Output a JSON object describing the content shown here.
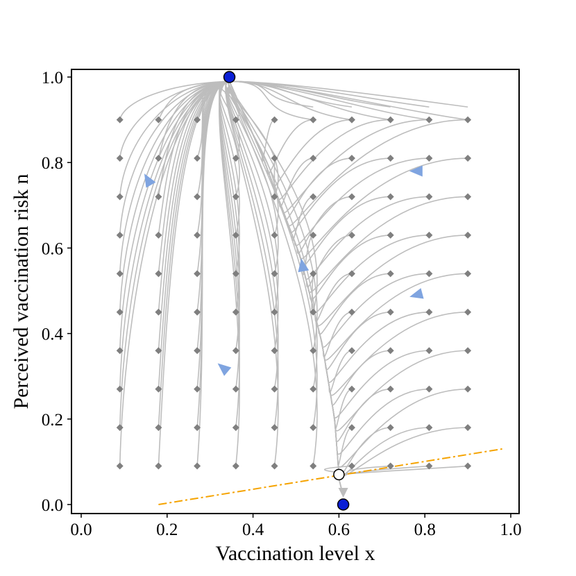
{
  "chart_data": {
    "type": "streamplot",
    "xlabel": "Vaccination level x",
    "ylabel": "Perceived vaccination risk n",
    "xlim": [
      0.0,
      1.0
    ],
    "ylim": [
      0.0,
      1.0
    ],
    "xticks": [
      "0.0",
      "0.2",
      "0.4",
      "0.6",
      "0.8",
      "1.0"
    ],
    "yticks": [
      "0.0",
      "0.2",
      "0.4",
      "0.6",
      "0.8",
      "1.0"
    ],
    "grid": false,
    "colors": {
      "trajectory": "#bdbdbd",
      "start_marker": "#7f7f7f",
      "direction_arrow": "#7fa4e0",
      "stable_fixed_point": "#0a1fd6",
      "unstable_fixed_point": "#ffffff",
      "nullcline": "#f5a300"
    },
    "stable_fixed_points": [
      {
        "x": 0.345,
        "y": 1.0
      },
      {
        "x": 0.61,
        "y": 0.0
      }
    ],
    "unstable_fixed_points": [
      {
        "x": 0.6,
        "y": 0.07
      }
    ],
    "nullcline": {
      "x": [
        0.18,
        0.98
      ],
      "y": [
        0.0,
        0.13
      ]
    },
    "grid_x_values": [
      0.09,
      0.18,
      0.27,
      0.36,
      0.45,
      0.54,
      0.63,
      0.72,
      0.81,
      0.9
    ],
    "grid_y_values": [
      0.09,
      0.18,
      0.27,
      0.36,
      0.45,
      0.54,
      0.63,
      0.72,
      0.81,
      0.9
    ],
    "separatrix_points": [
      {
        "x": 0.345,
        "y": 0.99
      },
      {
        "x": 0.42,
        "y": 0.82
      },
      {
        "x": 0.51,
        "y": 0.58
      },
      {
        "x": 0.56,
        "y": 0.38
      },
      {
        "x": 0.59,
        "y": 0.2
      },
      {
        "x": 0.6,
        "y": 0.07
      }
    ],
    "direction_arrows": [
      {
        "x": 0.155,
        "y": 0.76,
        "angle": -120
      },
      {
        "x": 0.33,
        "y": 0.32,
        "angle": -140
      },
      {
        "x": 0.515,
        "y": 0.56,
        "angle": -100
      },
      {
        "x": 0.78,
        "y": 0.78,
        "angle": 180
      },
      {
        "x": 0.78,
        "y": 0.49,
        "angle": 165
      }
    ]
  }
}
